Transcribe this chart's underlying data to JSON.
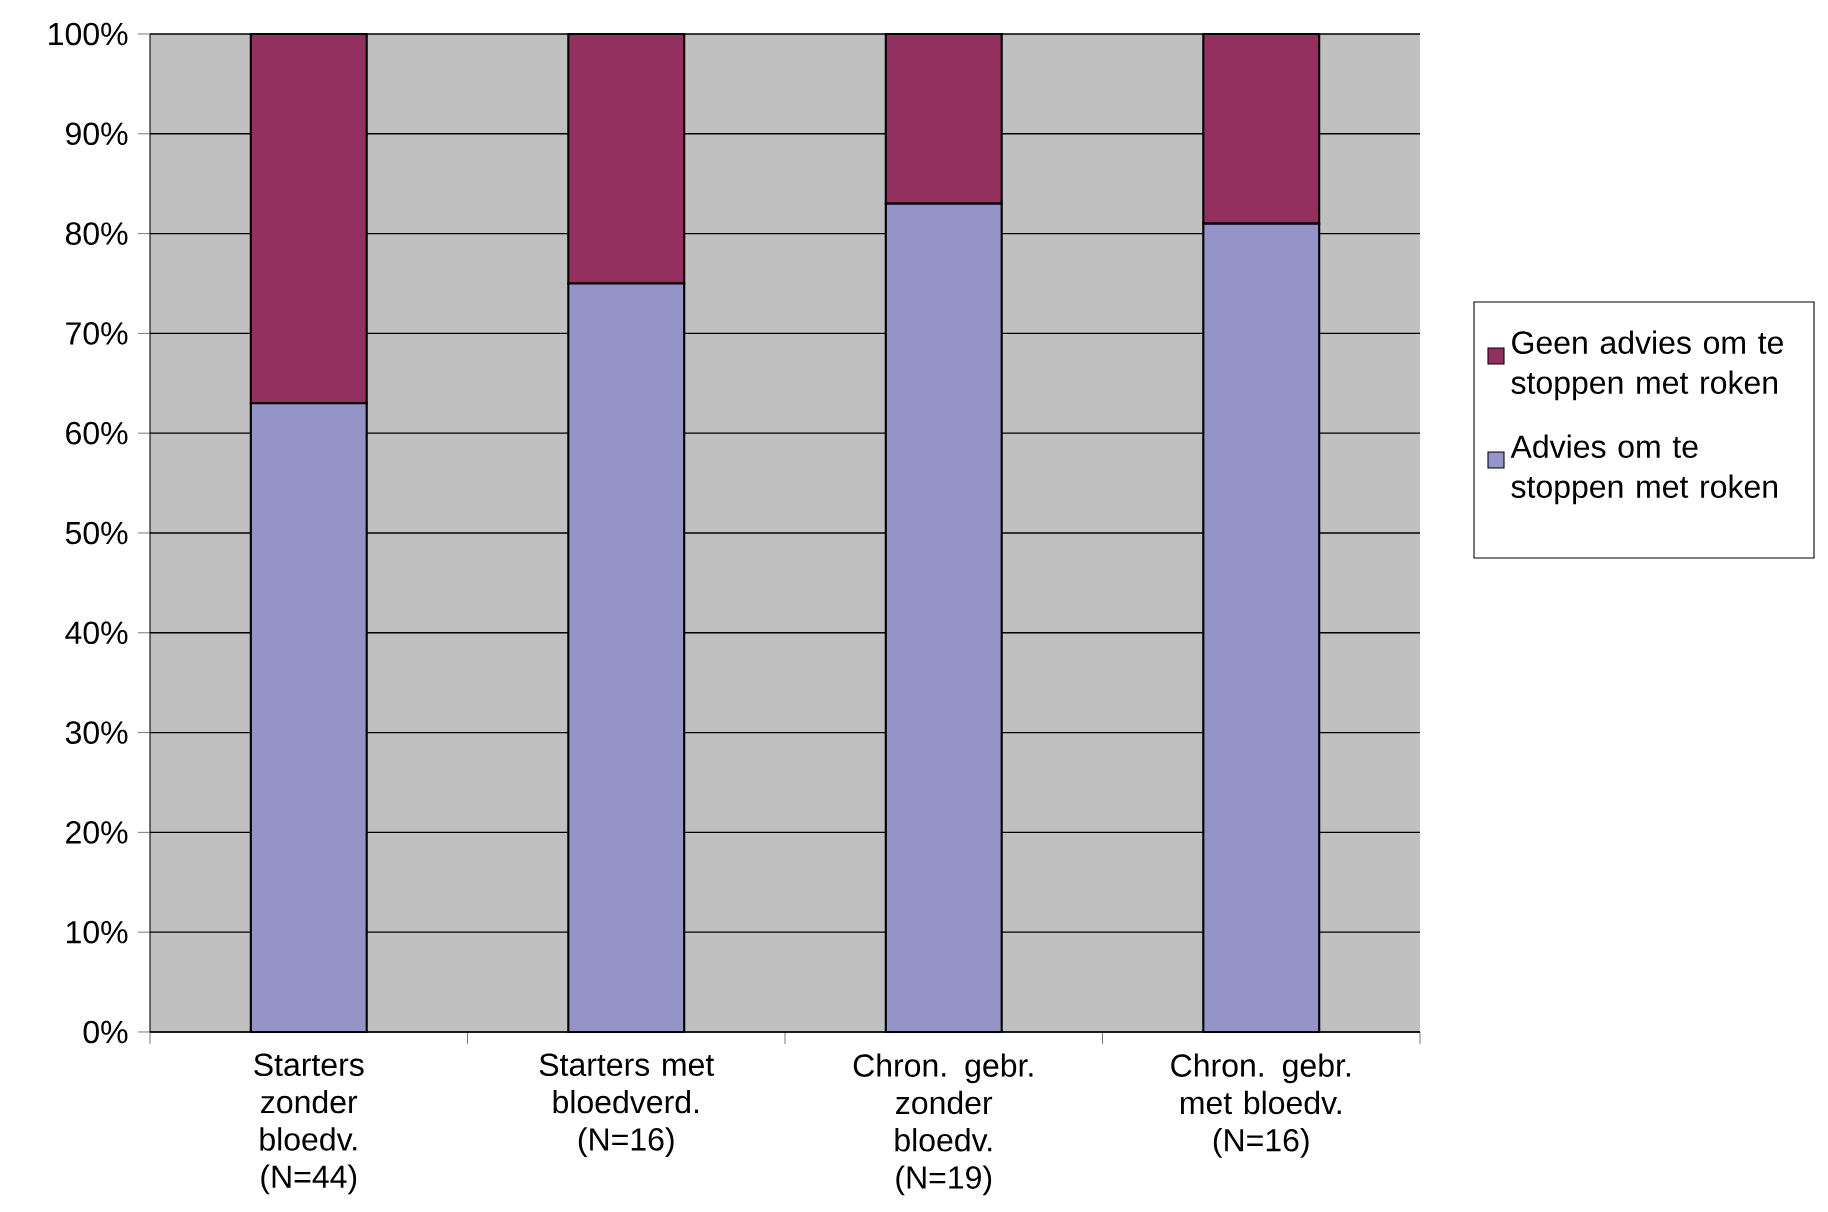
{
  "chart_data": {
    "type": "bar",
    "stacked": true,
    "categories": [
      "Starters zonder bloedv. (N=44)",
      "Starters met bloedverd. (N=16)",
      "Chron. gebr. zonder bloedv. (N=19)",
      "Chron. gebr. met bloedv. (N=16)"
    ],
    "series": [
      {
        "name": "Advies om te stoppen met roken",
        "color": "#9494c8",
        "values": [
          63,
          75,
          83,
          81
        ]
      },
      {
        "name": "Geen advies om te stoppen met roken",
        "color": "#943060",
        "values": [
          37,
          25,
          17,
          19
        ]
      }
    ],
    "ylim": [
      0,
      100
    ],
    "yticks": [
      {
        "value": 0,
        "label": "0%"
      },
      {
        "value": 10,
        "label": "10%"
      },
      {
        "value": 20,
        "label": "20%"
      },
      {
        "value": 30,
        "label": "30%"
      },
      {
        "value": 40,
        "label": "40%"
      },
      {
        "value": 50,
        "label": "50%"
      },
      {
        "value": 60,
        "label": "60%"
      },
      {
        "value": 70,
        "label": "70%"
      },
      {
        "value": 80,
        "label": "80%"
      },
      {
        "value": 90,
        "label": "90%"
      },
      {
        "value": 100,
        "label": "100%"
      }
    ],
    "grid": "y",
    "legend": "right"
  }
}
